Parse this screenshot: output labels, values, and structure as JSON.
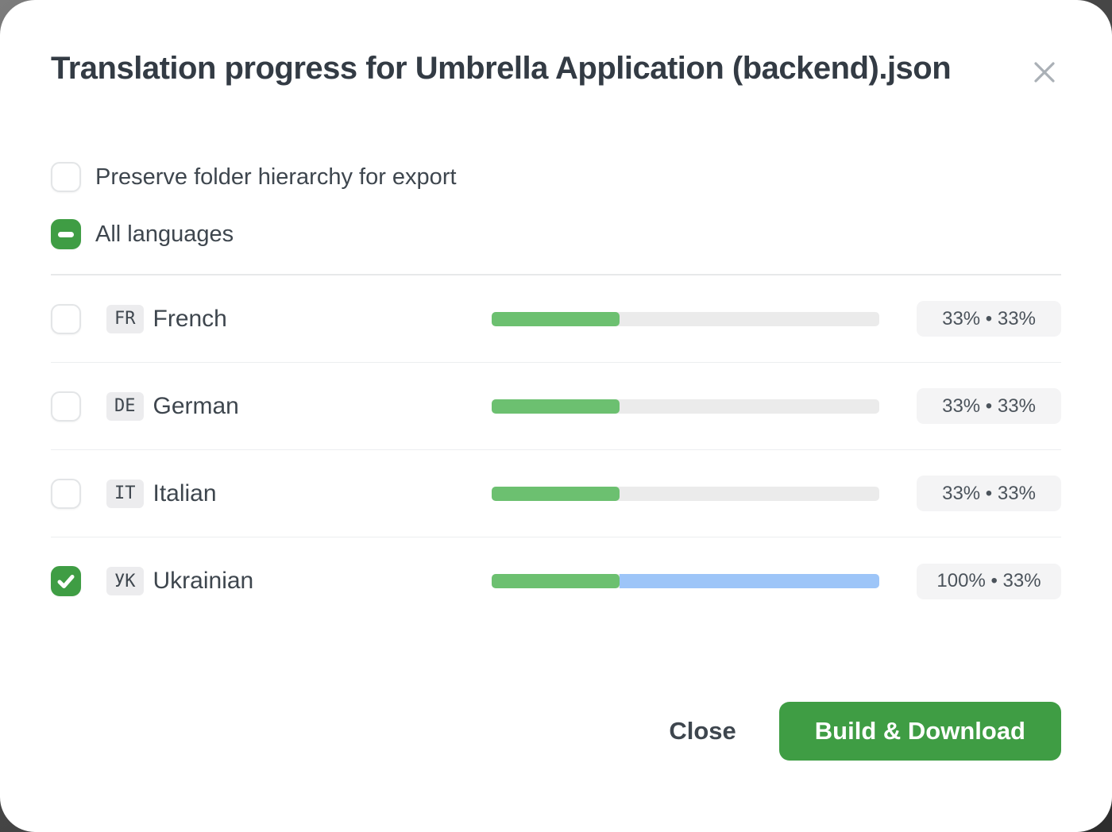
{
  "dialog": {
    "title": "Translation progress for Umbrella Application (backend).json"
  },
  "options": {
    "preserve": {
      "label": "Preserve folder hierarchy for export",
      "checked": false
    },
    "all_languages": {
      "label": "All languages",
      "state": "indeterminate"
    }
  },
  "languages": [
    {
      "code": "FR",
      "name": "French",
      "checked": false,
      "progress": {
        "green_pct": 33,
        "blue_pct": 0
      },
      "stats_label": "33% • 33%"
    },
    {
      "code": "DE",
      "name": "German",
      "checked": false,
      "progress": {
        "green_pct": 33,
        "blue_pct": 0
      },
      "stats_label": "33% • 33%"
    },
    {
      "code": "IT",
      "name": "Italian",
      "checked": false,
      "progress": {
        "green_pct": 33,
        "blue_pct": 0
      },
      "stats_label": "33% • 33%"
    },
    {
      "code": "УК",
      "name": "Ukrainian",
      "checked": true,
      "progress": {
        "green_pct": 33,
        "blue_pct": 67
      },
      "stats_label": "100% • 33%"
    }
  ],
  "footer": {
    "close_label": "Close",
    "build_label": "Build & Download"
  },
  "colors": {
    "accent_green": "#3f9d44",
    "progress_green": "#6cc070",
    "progress_blue": "#9dc5f8",
    "title_text": "#333b44"
  }
}
